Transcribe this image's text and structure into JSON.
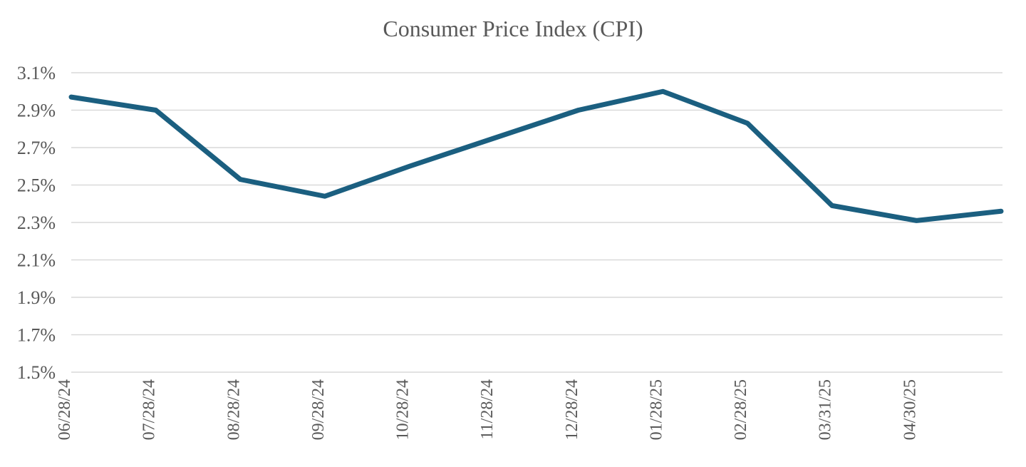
{
  "chart_data": {
    "type": "line",
    "title": "Consumer Price Index (CPI)",
    "xlabel": "",
    "ylabel": "",
    "categories": [
      "06/28/24",
      "07/28/24",
      "08/28/24",
      "09/28/24",
      "10/28/24",
      "11/28/24",
      "12/28/24",
      "01/28/25",
      "02/28/25",
      "03/31/25",
      "04/30/25",
      ""
    ],
    "x_tick_labels": [
      "06/28/24",
      "07/28/24",
      "08/28/24",
      "09/28/24",
      "10/28/24",
      "11/28/24",
      "12/28/24",
      "01/28/25",
      "02/28/25",
      "03/31/25",
      "04/30/25"
    ],
    "series": [
      {
        "name": "CPI",
        "color": "#1b5f80",
        "values": [
          2.97,
          2.9,
          2.53,
          2.44,
          2.6,
          2.75,
          2.9,
          3.0,
          2.83,
          2.39,
          2.31,
          2.36
        ]
      }
    ],
    "ylim": [
      1.5,
      3.1
    ],
    "y_ticks": [
      1.5,
      1.7,
      1.9,
      2.1,
      2.3,
      2.5,
      2.7,
      2.9,
      3.1
    ],
    "y_tick_labels": [
      "1.5%",
      "1.7%",
      "1.9%",
      "2.1%",
      "2.3%",
      "2.5%",
      "2.7%",
      "2.9%",
      "3.1%"
    ],
    "y_format": "percent",
    "grid": true,
    "legend": "none",
    "colors": {
      "line": "#1b5f80",
      "grid": "#d9d9d9",
      "text": "#595959"
    }
  }
}
